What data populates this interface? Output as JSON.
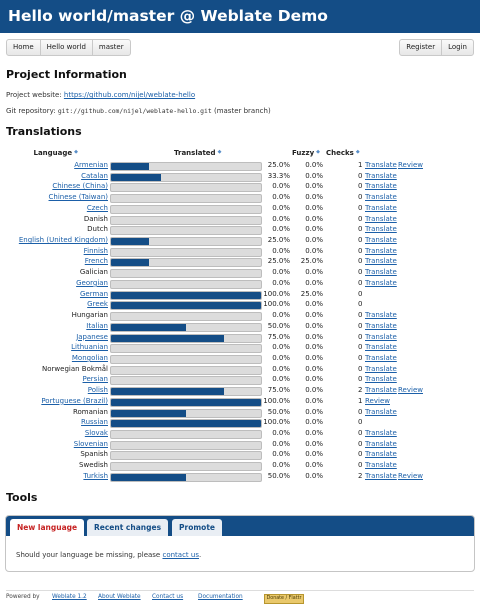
{
  "header": {
    "title": "Hello world/master @ Weblate Demo"
  },
  "breadcrumbs": [
    "Home",
    "Hello world",
    "master"
  ],
  "user_nav": [
    "Register",
    "Login"
  ],
  "project_info": {
    "heading": "Project Information",
    "website_label": "Project website:",
    "website_url": "https://github.com/nijel/weblate-hello",
    "repo_label": "Git repository:",
    "repo_url": "git://github.com/nijel/weblate-hello.git",
    "repo_branch": "(master branch)"
  },
  "translations": {
    "heading": "Translations",
    "columns": {
      "language": "Language",
      "translated": "Translated",
      "fuzzy": "Fuzzy",
      "checks": "Checks"
    },
    "rows": [
      {
        "lang": "Armenian",
        "link": true,
        "percent": 25,
        "pct": "25.0%",
        "fuzzy": "0.0%",
        "checks": "1",
        "actions": [
          "Translate",
          "Review"
        ]
      },
      {
        "lang": "Catalan",
        "link": true,
        "percent": 33.3,
        "pct": "33.3%",
        "fuzzy": "0.0%",
        "checks": "0",
        "actions": [
          "Translate"
        ]
      },
      {
        "lang": "Chinese (China)",
        "link": true,
        "percent": 0,
        "pct": "0.0%",
        "fuzzy": "0.0%",
        "checks": "0",
        "actions": [
          "Translate"
        ]
      },
      {
        "lang": "Chinese (Taiwan)",
        "link": true,
        "percent": 0,
        "pct": "0.0%",
        "fuzzy": "0.0%",
        "checks": "0",
        "actions": [
          "Translate"
        ]
      },
      {
        "lang": "Czech",
        "link": true,
        "percent": 0,
        "pct": "0.0%",
        "fuzzy": "0.0%",
        "checks": "0",
        "actions": [
          "Translate"
        ]
      },
      {
        "lang": "Danish",
        "link": false,
        "percent": 0,
        "pct": "0.0%",
        "fuzzy": "0.0%",
        "checks": "0",
        "actions": [
          "Translate"
        ]
      },
      {
        "lang": "Dutch",
        "link": false,
        "percent": 0,
        "pct": "0.0%",
        "fuzzy": "0.0%",
        "checks": "0",
        "actions": [
          "Translate"
        ]
      },
      {
        "lang": "English (United Kingdom)",
        "link": true,
        "percent": 25,
        "pct": "25.0%",
        "fuzzy": "0.0%",
        "checks": "0",
        "actions": [
          "Translate"
        ]
      },
      {
        "lang": "Finnish",
        "link": true,
        "percent": 0,
        "pct": "0.0%",
        "fuzzy": "0.0%",
        "checks": "0",
        "actions": [
          "Translate"
        ]
      },
      {
        "lang": "French",
        "link": true,
        "percent": 25,
        "pct": "25.0%",
        "fuzzy": "25.0%",
        "checks": "0",
        "actions": [
          "Translate"
        ]
      },
      {
        "lang": "Galician",
        "link": false,
        "percent": 0,
        "pct": "0.0%",
        "fuzzy": "0.0%",
        "checks": "0",
        "actions": [
          "Translate"
        ]
      },
      {
        "lang": "Georgian",
        "link": true,
        "percent": 0,
        "pct": "0.0%",
        "fuzzy": "0.0%",
        "checks": "0",
        "actions": [
          "Translate"
        ]
      },
      {
        "lang": "German",
        "link": true,
        "percent": 100,
        "pct": "100.0%",
        "fuzzy": "25.0%",
        "checks": "0",
        "actions": []
      },
      {
        "lang": "Greek",
        "link": true,
        "percent": 100,
        "pct": "100.0%",
        "fuzzy": "0.0%",
        "checks": "0",
        "actions": []
      },
      {
        "lang": "Hungarian",
        "link": false,
        "percent": 0,
        "pct": "0.0%",
        "fuzzy": "0.0%",
        "checks": "0",
        "actions": [
          "Translate"
        ]
      },
      {
        "lang": "Italian",
        "link": true,
        "percent": 50,
        "pct": "50.0%",
        "fuzzy": "0.0%",
        "checks": "0",
        "actions": [
          "Translate"
        ]
      },
      {
        "lang": "Japanese",
        "link": true,
        "percent": 75,
        "pct": "75.0%",
        "fuzzy": "0.0%",
        "checks": "0",
        "actions": [
          "Translate"
        ]
      },
      {
        "lang": "Lithuanian",
        "link": true,
        "percent": 0,
        "pct": "0.0%",
        "fuzzy": "0.0%",
        "checks": "0",
        "actions": [
          "Translate"
        ]
      },
      {
        "lang": "Mongolian",
        "link": true,
        "percent": 0,
        "pct": "0.0%",
        "fuzzy": "0.0%",
        "checks": "0",
        "actions": [
          "Translate"
        ]
      },
      {
        "lang": "Norwegian Bokmål",
        "link": false,
        "percent": 0,
        "pct": "0.0%",
        "fuzzy": "0.0%",
        "checks": "0",
        "actions": [
          "Translate"
        ]
      },
      {
        "lang": "Persian",
        "link": true,
        "percent": 0,
        "pct": "0.0%",
        "fuzzy": "0.0%",
        "checks": "0",
        "actions": [
          "Translate"
        ]
      },
      {
        "lang": "Polish",
        "link": true,
        "percent": 75,
        "pct": "75.0%",
        "fuzzy": "0.0%",
        "checks": "2",
        "actions": [
          "Translate",
          "Review"
        ]
      },
      {
        "lang": "Portuguese (Brazil)",
        "link": true,
        "percent": 100,
        "pct": "100.0%",
        "fuzzy": "0.0%",
        "checks": "1",
        "actions": [
          "Review"
        ]
      },
      {
        "lang": "Romanian",
        "link": false,
        "percent": 50,
        "pct": "50.0%",
        "fuzzy": "0.0%",
        "checks": "0",
        "actions": [
          "Translate"
        ]
      },
      {
        "lang": "Russian",
        "link": true,
        "percent": 100,
        "pct": "100.0%",
        "fuzzy": "0.0%",
        "checks": "0",
        "actions": []
      },
      {
        "lang": "Slovak",
        "link": true,
        "percent": 0,
        "pct": "0.0%",
        "fuzzy": "0.0%",
        "checks": "0",
        "actions": [
          "Translate"
        ]
      },
      {
        "lang": "Slovenian",
        "link": true,
        "percent": 0,
        "pct": "0.0%",
        "fuzzy": "0.0%",
        "checks": "0",
        "actions": [
          "Translate"
        ]
      },
      {
        "lang": "Spanish",
        "link": false,
        "percent": 0,
        "pct": "0.0%",
        "fuzzy": "0.0%",
        "checks": "0",
        "actions": [
          "Translate"
        ]
      },
      {
        "lang": "Swedish",
        "link": false,
        "percent": 0,
        "pct": "0.0%",
        "fuzzy": "0.0%",
        "checks": "0",
        "actions": [
          "Translate"
        ]
      },
      {
        "lang": "Turkish",
        "link": true,
        "percent": 50,
        "pct": "50.0%",
        "fuzzy": "0.0%",
        "checks": "2",
        "actions": [
          "Translate",
          "Review"
        ]
      }
    ]
  },
  "tools": {
    "heading": "Tools",
    "tabs": [
      "New language",
      "Recent changes",
      "Promote"
    ],
    "active_tab": "New language",
    "body_text": "Should your language be missing, please",
    "body_link": "contact us",
    "body_end": "."
  },
  "footer": {
    "powered_by": "Powered by",
    "weblate_version": "Weblate 1.2",
    "links": [
      "About Weblate",
      "Contact us",
      "Documentation"
    ],
    "badge": "Donate / Flattr"
  },
  "colors": {
    "header_bg": "#144d86",
    "bar_fill": "#144d86",
    "link": "#1b5fa8",
    "active_tab_text": "#c62222"
  }
}
